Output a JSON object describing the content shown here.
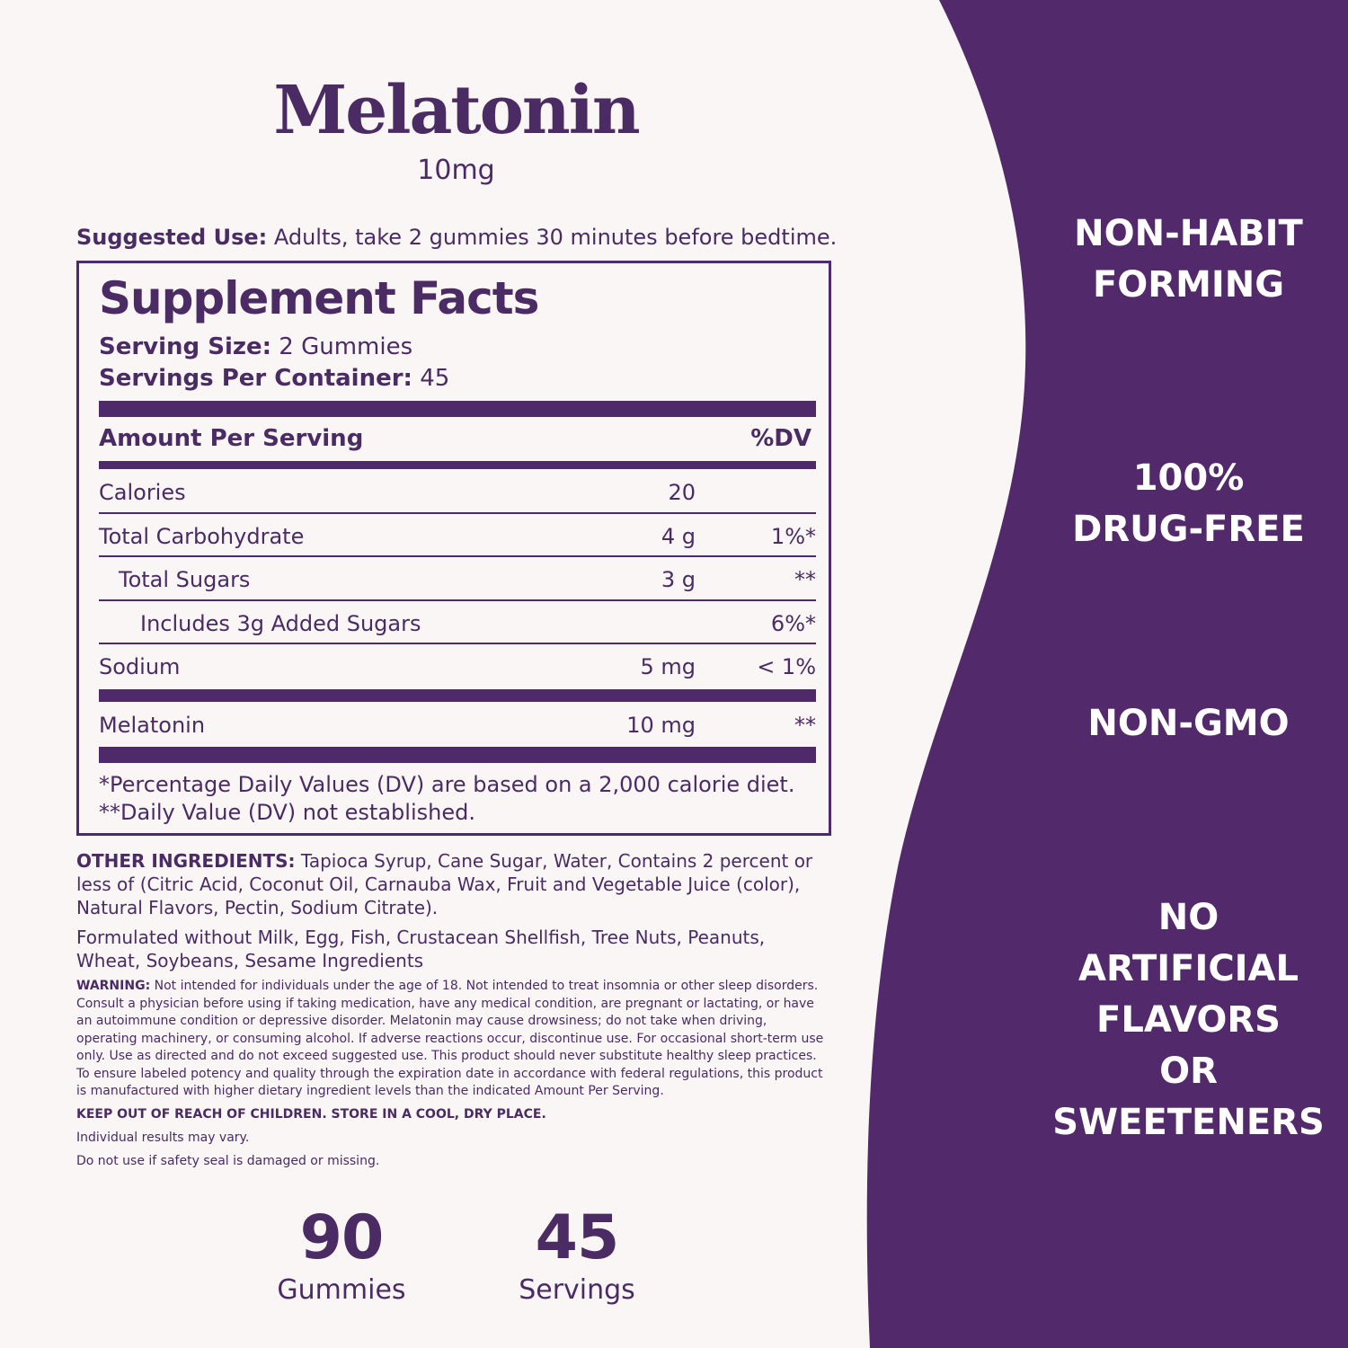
{
  "product": {
    "name": "Melatonin",
    "dose": "10mg"
  },
  "suggested_use": {
    "label": "Suggested Use:",
    "text": " Adults, take 2 gummies 30 minutes before bedtime."
  },
  "supplement_facts": {
    "title": "Supplement Facts",
    "serving_size_label": "Serving Size:",
    "serving_size_value": " 2 Gummies",
    "servings_per_container_label": "Servings Per Container:",
    "servings_per_container_value": " 45",
    "header_amount": "Amount Per Serving",
    "header_dv": "%DV",
    "rows": [
      {
        "name": "Calories",
        "amount": "20",
        "dv": ""
      },
      {
        "name": "Total Carbohydrate",
        "amount": "4 g",
        "dv": "1%*"
      },
      {
        "name": "Total Sugars",
        "amount": "3 g",
        "dv": "**"
      },
      {
        "name": "Includes 3g Added Sugars",
        "amount": "",
        "dv": "6%*"
      },
      {
        "name": "Sodium",
        "amount": "5 mg",
        "dv": "< 1%"
      },
      {
        "name": "Melatonin",
        "amount": "10 mg",
        "dv": "**"
      }
    ],
    "footnote_1": "*Percentage Daily Values (DV) are based on a 2,000 calorie diet.",
    "footnote_2": "**Daily Value (DV) not established."
  },
  "other_ingredients": {
    "label": "OTHER INGREDIENTS:",
    "text": " Tapioca Syrup, Cane Sugar, Water, Contains 2 percent or less of (Citric Acid, Coconut Oil, Carnauba Wax, Fruit and Vegetable Juice (color), Natural Flavors, Pectin, Sodium Citrate)."
  },
  "formulated_without": "Formulated without Milk, Egg, Fish, Crustacean Shellfish, Tree Nuts, Peanuts, Wheat, Soybeans, Sesame Ingredients",
  "warning": {
    "label": "WARNING:",
    "text": " Not intended for individuals under the age of 18. Not intended to treat insomnia or other sleep disorders. Consult a physician before using if taking medication, have any medical condition, are pregnant or lactating, or have an autoimmune condition or depressive disorder. Melatonin may cause drowsiness; do not take when driving, operating machinery, or consuming alcohol. If adverse reactions occur, discontinue use. For occasional short-term use only. Use as directed and do not exceed suggested use. This product should never substitute healthy sleep practices. To ensure labeled potency and quality through the expiration date in accordance with federal regulations, this product is manufactured with higher dietary ingredient levels than the indicated Amount Per Serving."
  },
  "keep_out": "KEEP OUT OF REACH OF CHILDREN. STORE IN A COOL, DRY PLACE.",
  "individual_results": "Individual results may vary.",
  "safety_seal": "Do not use if safety seal is damaged or missing.",
  "counts": [
    {
      "number": "90",
      "label": "Gummies"
    },
    {
      "number": "45",
      "label": "Servings"
    }
  ],
  "claims": [
    {
      "lines": [
        "NON-HABIT",
        "FORMING"
      ]
    },
    {
      "lines": [
        "100%",
        "DRUG-FREE"
      ]
    },
    {
      "lines": [
        "NON-GMO"
      ]
    },
    {
      "lines": [
        "NO",
        "ARTIFICIAL",
        "FLAVORS",
        "OR",
        "SWEETENERS"
      ]
    }
  ],
  "colors": {
    "brand_purple": "#52296a",
    "text_purple": "#4a2b63",
    "background": "#faf6f6"
  }
}
